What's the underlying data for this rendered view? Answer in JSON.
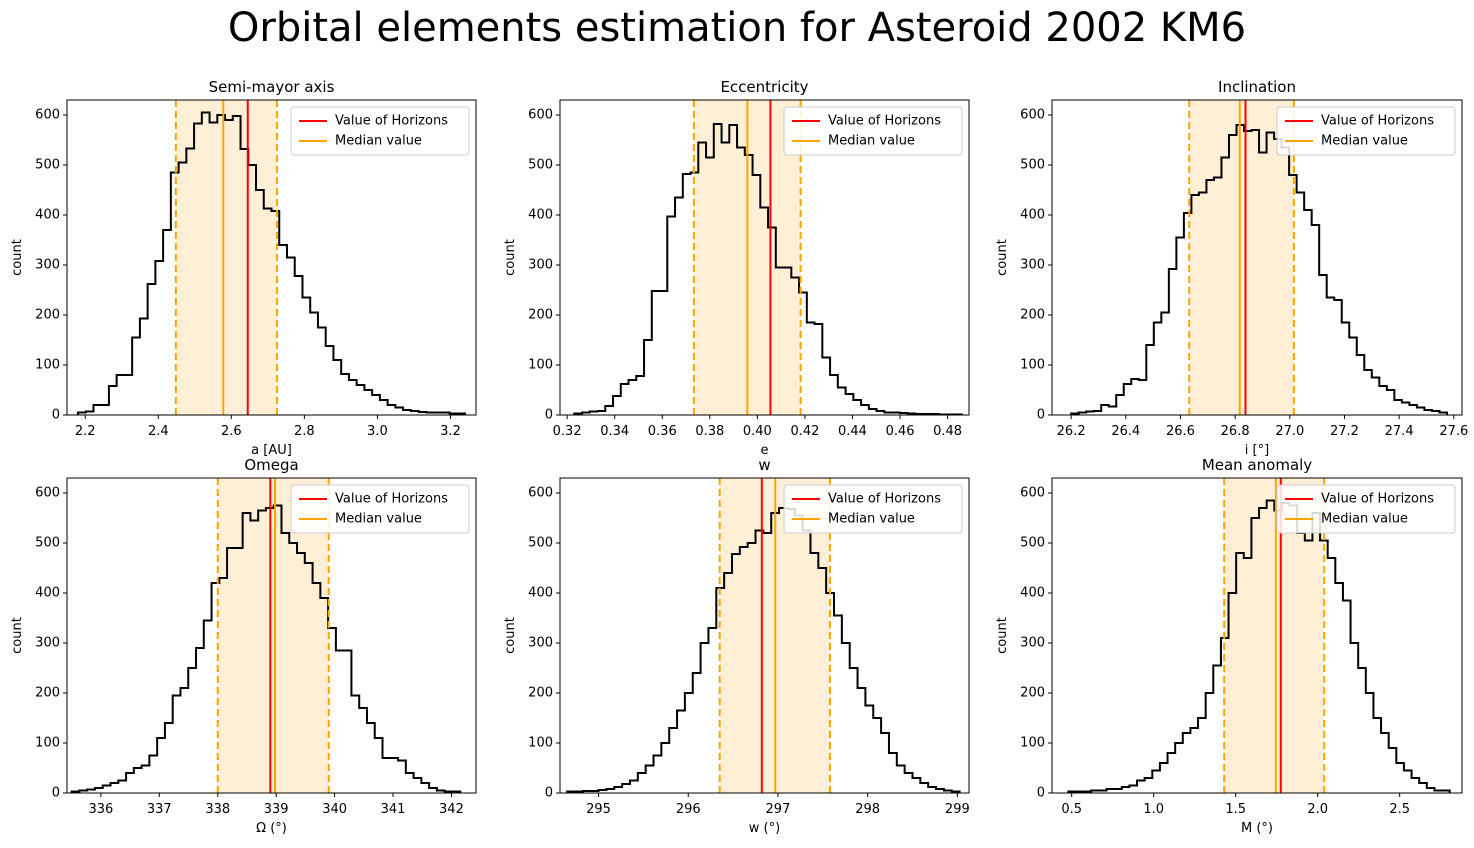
{
  "figure": {
    "title": "Orbital elements estimation for Asteroid 2002 KM6",
    "colors": {
      "histogram": "#000000",
      "horizons": "#ff0000",
      "median": "#ffa500",
      "band": "#ffefd6"
    }
  },
  "chart_data": [
    {
      "type": "histogram",
      "title": "Semi-mayor axis",
      "xlabel": "a [AU]",
      "ylabel": "count",
      "xlim": [
        2.15,
        3.27
      ],
      "ylim": [
        0,
        630
      ],
      "xticks": [
        2.2,
        2.4,
        2.6,
        2.8,
        3.0,
        3.2
      ],
      "xticklabels": [
        "2.2",
        "2.4",
        "2.6",
        "2.8",
        "3.0",
        "3.2"
      ],
      "yticks": [
        0,
        100,
        200,
        300,
        400,
        500,
        600
      ],
      "bin_start": 2.18,
      "bin_width": 0.0212,
      "counts": [
        5,
        7,
        20,
        20,
        58,
        80,
        80,
        155,
        193,
        262,
        308,
        370,
        485,
        505,
        533,
        583,
        605,
        585,
        600,
        590,
        598,
        532,
        500,
        450,
        413,
        408,
        340,
        315,
        278,
        235,
        205,
        175,
        138,
        110,
        82,
        70,
        60,
        50,
        40,
        30,
        20,
        15,
        10,
        8,
        6,
        5,
        5,
        5,
        3,
        3
      ],
      "horizons_value": 2.645,
      "median_value": 2.578,
      "interval": [
        2.448,
        2.725
      ],
      "legend": [
        "Value of Horizons",
        "Median value"
      ],
      "legend_loc": "upper right"
    },
    {
      "type": "histogram",
      "title": "Eccentricity",
      "xlabel": "e",
      "ylabel": "count",
      "xlim": [
        0.317,
        0.489
      ],
      "ylim": [
        0,
        630
      ],
      "xticks": [
        0.32,
        0.34,
        0.36,
        0.38,
        0.4,
        0.42,
        0.44,
        0.46,
        0.48
      ],
      "xticklabels": [
        "0.32",
        "0.34",
        "0.36",
        "0.38",
        "0.40",
        "0.42",
        "0.44",
        "0.46",
        "0.48"
      ],
      "yticks": [
        0,
        100,
        200,
        300,
        400,
        500,
        600
      ],
      "bin_start": 0.323,
      "bin_width": 0.00326,
      "counts": [
        3,
        5,
        7,
        8,
        18,
        38,
        62,
        70,
        78,
        150,
        248,
        248,
        397,
        435,
        482,
        485,
        545,
        515,
        582,
        545,
        580,
        535,
        520,
        480,
        415,
        375,
        295,
        295,
        275,
        245,
        185,
        182,
        115,
        80,
        55,
        42,
        30,
        20,
        12,
        8,
        5,
        5,
        4,
        3,
        2,
        2,
        2,
        1,
        1,
        1
      ],
      "horizons_value": 0.4055,
      "median_value": 0.3958,
      "interval": [
        0.3733,
        0.4182
      ],
      "legend": [
        "Value of Horizons",
        "Median value"
      ],
      "legend_loc": "upper right"
    },
    {
      "type": "histogram",
      "title": "Inclination",
      "xlabel": "i [°]",
      "ylabel": "count",
      "xlim": [
        26.13,
        27.63
      ],
      "ylim": [
        0,
        630
      ],
      "xticks": [
        26.2,
        26.4,
        26.6,
        26.8,
        27.0,
        27.2,
        27.4,
        27.6
      ],
      "xticklabels": [
        "26.2",
        "26.4",
        "26.6",
        "26.8",
        "27.0",
        "27.2",
        "27.4",
        "27.6"
      ],
      "yticks": [
        0,
        100,
        200,
        300,
        400,
        500,
        600
      ],
      "bin_start": 26.2,
      "bin_width": 0.0275,
      "counts": [
        3,
        5,
        7,
        8,
        20,
        17,
        40,
        62,
        72,
        70,
        140,
        185,
        205,
        292,
        355,
        404,
        440,
        445,
        470,
        475,
        515,
        560,
        580,
        568,
        570,
        525,
        565,
        552,
        535,
        480,
        445,
        410,
        380,
        280,
        235,
        230,
        185,
        155,
        120,
        90,
        75,
        58,
        50,
        30,
        25,
        20,
        15,
        10,
        8,
        5
      ],
      "horizons_value": 26.838,
      "median_value": 26.817,
      "interval": [
        26.632,
        27.015
      ],
      "legend": [
        "Value of Horizons",
        "Median value"
      ],
      "legend_loc": "upper right"
    },
    {
      "type": "histogram",
      "title": "Omega",
      "xlabel": "Ω (°)",
      "ylabel": "count",
      "xlim": [
        335.42,
        342.42
      ],
      "ylim": [
        0,
        630
      ],
      "xticks": [
        336,
        337,
        338,
        339,
        340,
        341,
        342
      ],
      "xticklabels": [
        "336",
        "337",
        "338",
        "339",
        "340",
        "341",
        "342"
      ],
      "yticks": [
        0,
        100,
        200,
        300,
        400,
        500,
        600
      ],
      "bin_start": 335.5,
      "bin_width": 0.133,
      "counts": [
        3,
        5,
        7,
        10,
        15,
        20,
        25,
        40,
        50,
        55,
        75,
        110,
        140,
        195,
        210,
        250,
        290,
        345,
        420,
        430,
        490,
        490,
        560,
        545,
        565,
        570,
        575,
        520,
        500,
        480,
        460,
        420,
        390,
        330,
        285,
        285,
        195,
        170,
        140,
        110,
        70,
        70,
        65,
        40,
        30,
        20,
        10,
        5,
        3,
        3
      ],
      "horizons_value": 338.9,
      "median_value": 338.98,
      "interval": [
        338.0,
        339.9
      ],
      "legend": [
        "Value of Horizons",
        "Median value"
      ],
      "legend_loc": "upper right"
    },
    {
      "type": "histogram",
      "title": "w",
      "xlabel": "w (°)",
      "ylabel": "count",
      "xlim": [
        294.57,
        299.13
      ],
      "ylim": [
        0,
        630
      ],
      "xticks": [
        295,
        296,
        297,
        298,
        299
      ],
      "xticklabels": [
        "295",
        "296",
        "297",
        "298",
        "299"
      ],
      "yticks": [
        0,
        100,
        200,
        300,
        400,
        500,
        600
      ],
      "bin_start": 294.65,
      "bin_width": 0.0875,
      "counts": [
        3,
        3,
        4,
        4,
        6,
        8,
        12,
        18,
        25,
        40,
        55,
        75,
        100,
        130,
        165,
        200,
        240,
        300,
        330,
        410,
        440,
        478,
        492,
        500,
        525,
        520,
        560,
        570,
        568,
        555,
        525,
        480,
        450,
        400,
        355,
        300,
        250,
        210,
        175,
        150,
        120,
        80,
        55,
        40,
        30,
        20,
        12,
        8,
        5,
        3
      ],
      "horizons_value": 296.82,
      "median_value": 296.97,
      "interval": [
        296.35,
        297.58
      ],
      "legend": [
        "Value of Horizons",
        "Median value"
      ],
      "legend_loc": "upper right"
    },
    {
      "type": "histogram",
      "title": "Mean anomaly",
      "xlabel": "M (°)",
      "ylabel": "count",
      "xlim": [
        0.38,
        2.88
      ],
      "ylim": [
        0,
        630
      ],
      "xticks": [
        0.5,
        1.0,
        1.5,
        2.0,
        2.5
      ],
      "xticklabels": [
        "0.5",
        "1.0",
        "1.5",
        "2.0",
        "2.5"
      ],
      "yticks": [
        0,
        100,
        200,
        300,
        400,
        500,
        600
      ],
      "bin_start": 0.48,
      "bin_width": 0.0465,
      "counts": [
        3,
        3,
        3,
        5,
        5,
        8,
        8,
        12,
        15,
        25,
        30,
        45,
        60,
        80,
        100,
        120,
        130,
        150,
        200,
        255,
        310,
        400,
        480,
        470,
        550,
        570,
        585,
        565,
        580,
        575,
        520,
        505,
        560,
        505,
        470,
        420,
        385,
        300,
        250,
        200,
        150,
        120,
        90,
        60,
        45,
        30,
        20,
        10,
        5,
        5
      ],
      "horizons_value": 1.775,
      "median_value": 1.745,
      "interval": [
        1.43,
        2.04
      ],
      "legend": [
        "Value of Horizons",
        "Median value"
      ],
      "legend_loc": "upper right"
    }
  ]
}
